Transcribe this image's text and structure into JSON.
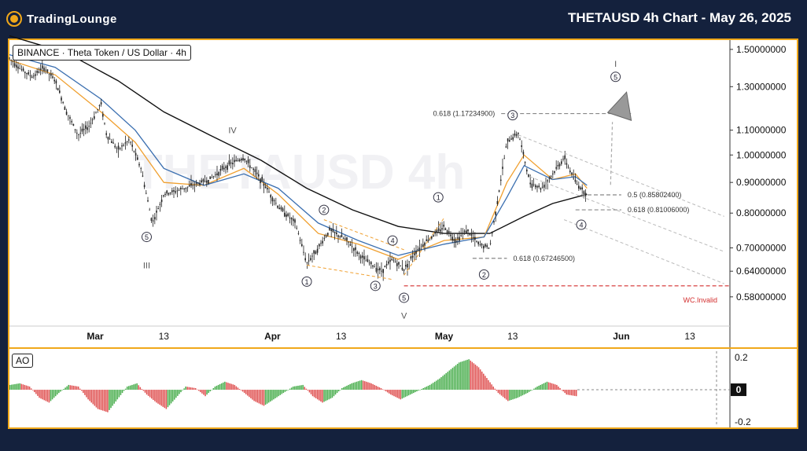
{
  "header": {
    "logo_text": "TradingLounge",
    "title": "THETAUSD 4h Chart - May 26, 2025"
  },
  "legend": {
    "ticker_label": "BINANCE · Theta Token / US Dollar · 4h"
  },
  "watermark": "THETAUSD 4h",
  "indicator": {
    "label": "AO"
  },
  "colors": {
    "frame": "#f0a81a",
    "background": "#14213d",
    "candle": "#222222",
    "ma_fast": "#f0a030",
    "ma_mid": "#3b6fb0",
    "ma_slow": "#111111",
    "ao_up": "#4caf50",
    "ao_down": "#e05555",
    "invalid_line": "#d32f2f",
    "fib_line": "#888888"
  },
  "chart_data": {
    "type": "line",
    "y_axis": {
      "scale": "log",
      "ticks": [
        "1.50000000",
        "1.30000000",
        "1.10000000",
        "1.00000000",
        "0.90000000",
        "0.80000000",
        "0.70000000",
        "0.64000000",
        "0.58000000"
      ],
      "range": [
        0.52,
        1.55
      ]
    },
    "x_axis": {
      "ticks": [
        "Mar",
        "13",
        "Apr",
        "13",
        "May",
        "13",
        "Jun",
        "13"
      ]
    },
    "series": [
      {
        "role": "price",
        "points": [
          [
            "2025-02-14",
            1.45
          ],
          [
            "2025-02-16",
            1.39
          ],
          [
            "2025-02-18",
            1.35
          ],
          [
            "2025-02-20",
            1.4
          ],
          [
            "2025-02-22",
            1.33
          ],
          [
            "2025-02-24",
            1.18
          ],
          [
            "2025-02-26",
            1.08
          ],
          [
            "2025-02-28",
            1.12
          ],
          [
            "2025-03-02",
            1.22
          ],
          [
            "2025-03-03",
            1.08
          ],
          [
            "2025-03-05",
            1.02
          ],
          [
            "2025-03-07",
            1.06
          ],
          [
            "2025-03-09",
            0.95
          ],
          [
            "2025-03-11",
            0.77
          ],
          [
            "2025-03-13",
            0.86
          ],
          [
            "2025-03-15",
            0.87
          ],
          [
            "2025-03-18",
            0.89
          ],
          [
            "2025-03-21",
            0.91
          ],
          [
            "2025-03-24",
            0.96
          ],
          [
            "2025-03-27",
            0.99
          ],
          [
            "2025-03-30",
            0.91
          ],
          [
            "2025-04-02",
            0.82
          ],
          [
            "2025-04-05",
            0.77
          ],
          [
            "2025-04-07",
            0.66
          ],
          [
            "2025-04-09",
            0.7
          ],
          [
            "2025-04-11",
            0.75
          ],
          [
            "2025-04-14",
            0.72
          ],
          [
            "2025-04-17",
            0.67
          ],
          [
            "2025-04-20",
            0.64
          ],
          [
            "2025-04-22",
            0.67
          ],
          [
            "2025-04-24",
            0.645
          ],
          [
            "2025-04-26",
            0.69
          ],
          [
            "2025-04-28",
            0.72
          ],
          [
            "2025-05-01",
            0.76
          ],
          [
            "2025-05-03",
            0.72
          ],
          [
            "2025-05-05",
            0.75
          ],
          [
            "2025-05-07",
            0.71
          ],
          [
            "2025-05-09",
            0.7
          ],
          [
            "2025-05-10",
            0.8
          ],
          [
            "2025-05-12",
            1.05
          ],
          [
            "2025-05-14",
            1.09
          ],
          [
            "2025-05-16",
            0.9
          ],
          [
            "2025-05-18",
            0.88
          ],
          [
            "2025-05-20",
            0.93
          ],
          [
            "2025-05-22",
            0.99
          ],
          [
            "2025-05-24",
            0.9
          ],
          [
            "2025-05-26",
            0.86
          ]
        ]
      },
      {
        "role": "ma_slow",
        "points": [
          [
            "2025-02-14",
            1.58
          ],
          [
            "2025-02-24",
            1.48
          ],
          [
            "2025-03-05",
            1.33
          ],
          [
            "2025-03-13",
            1.18
          ],
          [
            "2025-03-21",
            1.08
          ],
          [
            "2025-03-30",
            0.98
          ],
          [
            "2025-04-07",
            0.88
          ],
          [
            "2025-04-15",
            0.81
          ],
          [
            "2025-04-23",
            0.76
          ],
          [
            "2025-05-01",
            0.74
          ],
          [
            "2025-05-09",
            0.74
          ],
          [
            "2025-05-15",
            0.79
          ],
          [
            "2025-05-20",
            0.83
          ],
          [
            "2025-05-26",
            0.86
          ]
        ]
      },
      {
        "role": "ma_fast",
        "points": [
          [
            "2025-02-14",
            1.44
          ],
          [
            "2025-02-22",
            1.36
          ],
          [
            "2025-03-02",
            1.18
          ],
          [
            "2025-03-08",
            1.05
          ],
          [
            "2025-03-13",
            0.9
          ],
          [
            "2025-03-20",
            0.89
          ],
          [
            "2025-03-27",
            0.95
          ],
          [
            "2025-04-02",
            0.86
          ],
          [
            "2025-04-09",
            0.74
          ],
          [
            "2025-04-16",
            0.71
          ],
          [
            "2025-04-23",
            0.67
          ],
          [
            "2025-05-01",
            0.72
          ],
          [
            "2025-05-08",
            0.73
          ],
          [
            "2025-05-12",
            0.9
          ],
          [
            "2025-05-15",
            1.0
          ],
          [
            "2025-05-20",
            0.91
          ],
          [
            "2025-05-24",
            0.93
          ],
          [
            "2025-05-26",
            0.88
          ]
        ]
      },
      {
        "role": "ma_mid",
        "points": [
          [
            "2025-02-14",
            1.47
          ],
          [
            "2025-02-22",
            1.4
          ],
          [
            "2025-03-02",
            1.24
          ],
          [
            "2025-03-08",
            1.1
          ],
          [
            "2025-03-13",
            0.95
          ],
          [
            "2025-03-20",
            0.89
          ],
          [
            "2025-03-27",
            0.93
          ],
          [
            "2025-04-02",
            0.88
          ],
          [
            "2025-04-09",
            0.77
          ],
          [
            "2025-04-16",
            0.72
          ],
          [
            "2025-04-23",
            0.68
          ],
          [
            "2025-05-01",
            0.71
          ],
          [
            "2025-05-08",
            0.73
          ],
          [
            "2025-05-12",
            0.85
          ],
          [
            "2025-05-15",
            0.96
          ],
          [
            "2025-05-20",
            0.91
          ],
          [
            "2025-05-24",
            0.92
          ],
          [
            "2025-05-26",
            0.89
          ]
        ]
      }
    ],
    "wave_labels": [
      {
        "text": "IV",
        "x": "2025-03-25",
        "y": 1.1
      },
      {
        "text": "III",
        "x": "2025-03-10",
        "y": 0.655
      },
      {
        "text": "V",
        "x": "2025-04-24",
        "y": 0.54
      },
      {
        "text": "I",
        "x": "2025-05-31",
        "y": 1.42
      },
      {
        "text": "5",
        "circled": true,
        "x": "2025-03-10",
        "y": 0.73
      },
      {
        "text": "1",
        "circled": true,
        "x": "2025-04-07",
        "y": 0.615
      },
      {
        "text": "2",
        "circled": true,
        "x": "2025-04-10",
        "y": 0.81
      },
      {
        "text": "3",
        "circled": true,
        "x": "2025-04-19",
        "y": 0.605
      },
      {
        "text": "4",
        "circled": true,
        "x": "2025-04-22",
        "y": 0.72
      },
      {
        "text": "5",
        "circled": true,
        "x": "2025-04-24",
        "y": 0.578
      },
      {
        "text": "1",
        "circled": true,
        "x": "2025-04-30",
        "y": 0.85
      },
      {
        "text": "2",
        "circled": true,
        "x": "2025-05-08",
        "y": 0.632
      },
      {
        "text": "3",
        "circled": true,
        "x": "2025-05-13",
        "y": 1.165
      },
      {
        "text": "4",
        "circled": true,
        "x": "2025-05-25",
        "y": 0.765
      },
      {
        "text": "5",
        "circled": true,
        "x": "2025-05-31",
        "y": 1.35
      }
    ],
    "levels": [
      {
        "label": "0.618 (1.17234900)",
        "value": 1.172349
      },
      {
        "label": "0.5 (0.85802400)",
        "value": 0.858024
      },
      {
        "label": "0.618 (0.81006000)",
        "value": 0.81006
      },
      {
        "label": "0.618 (0.67246500)",
        "value": 0.672465
      }
    ],
    "invalidation": {
      "label": "WC.Invalid",
      "value": 0.605
    },
    "projection": {
      "from": [
        "2025-05-26",
        0.86
      ],
      "to": [
        "2025-05-31",
        1.17
      ]
    },
    "channel": [
      {
        "from": [
          "2025-05-14",
          1.08
        ],
        "to": [
          "2025-06-19",
          0.79
        ]
      },
      {
        "from": [
          "2025-05-16",
          0.92
        ],
        "to": [
          "2025-06-19",
          0.69
        ]
      },
      {
        "from": [
          "2025-05-22",
          0.78
        ],
        "to": [
          "2025-06-19",
          0.61
        ]
      }
    ],
    "ao": {
      "ticks": [
        "0.2",
        "0",
        "-0.2"
      ],
      "range": [
        -0.22,
        0.24
      ],
      "values": [
        0.03,
        0.04,
        0.02,
        -0.05,
        -0.08,
        -0.02,
        0.03,
        0.02,
        -0.06,
        -0.12,
        -0.14,
        -0.06,
        0.02,
        0.04,
        -0.03,
        -0.08,
        -0.12,
        -0.05,
        0.02,
        0.01,
        -0.04,
        0.02,
        0.05,
        0.03,
        -0.02,
        -0.07,
        -0.1,
        -0.06,
        -0.02,
        0.02,
        0.03,
        -0.04,
        -0.08,
        -0.05,
        0.01,
        0.04,
        0.06,
        0.04,
        0.01,
        -0.03,
        -0.06,
        -0.03,
        0.0,
        0.03,
        0.07,
        0.12,
        0.17,
        0.19,
        0.14,
        0.06,
        -0.02,
        -0.07,
        -0.05,
        -0.02,
        0.02,
        0.05,
        0.03,
        -0.03,
        -0.04
      ]
    }
  }
}
